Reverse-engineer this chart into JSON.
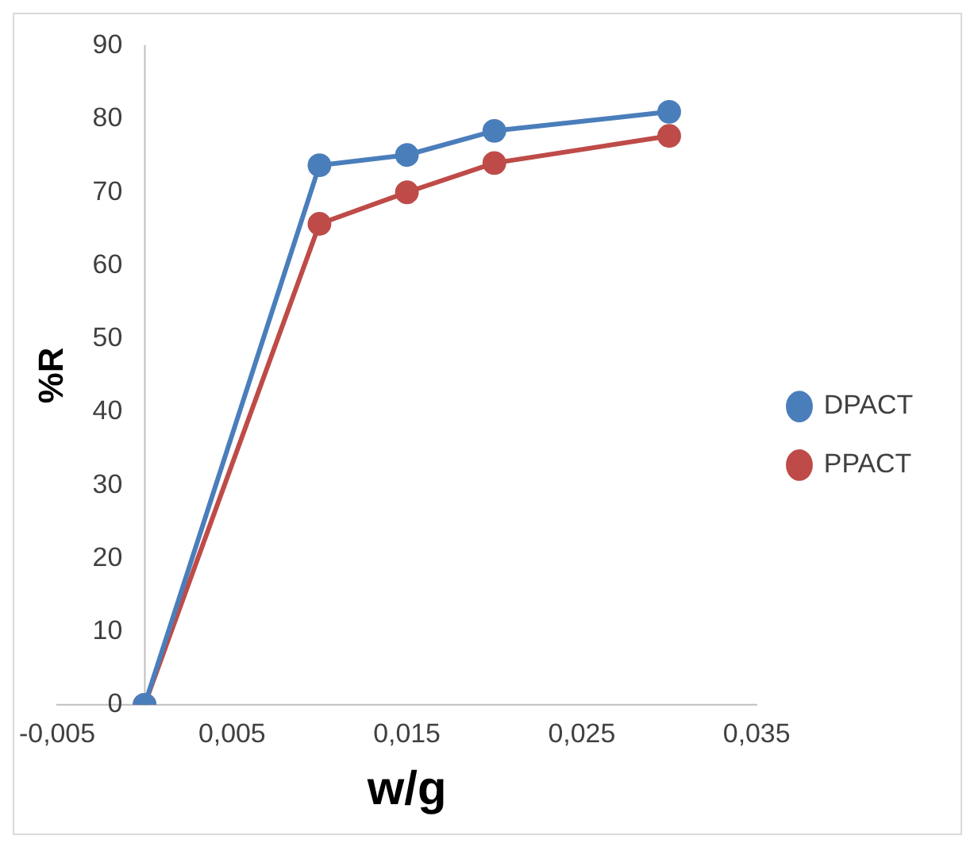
{
  "chart_data": {
    "type": "line",
    "xlabel": "w/g",
    "ylabel": "%R",
    "x": [
      0,
      0.01,
      0.015,
      0.02,
      0.03
    ],
    "series": [
      {
        "name": "DPACT",
        "color": "#4a7ebb",
        "values": [
          0,
          73.7,
          75.1,
          78.4,
          81
        ]
      },
      {
        "name": "PPACT",
        "color": "#be4b48",
        "values": [
          0,
          65.7,
          70,
          74,
          77.7
        ]
      }
    ],
    "xlim": [
      -0.005,
      0.035
    ],
    "xticks": [
      {
        "value": -0.005,
        "label": "-0,005"
      },
      {
        "value": 0.005,
        "label": "0,005"
      },
      {
        "value": 0.015,
        "label": "0,015"
      },
      {
        "value": 0.025,
        "label": "0,025"
      },
      {
        "value": 0.035,
        "label": "0,035"
      }
    ],
    "ylim": [
      0,
      90
    ],
    "yticks": [
      0,
      10,
      20,
      30,
      40,
      50,
      60,
      70,
      80,
      90
    ],
    "grid": false,
    "legend": "right",
    "marker": "circle",
    "line_style": "solid"
  }
}
